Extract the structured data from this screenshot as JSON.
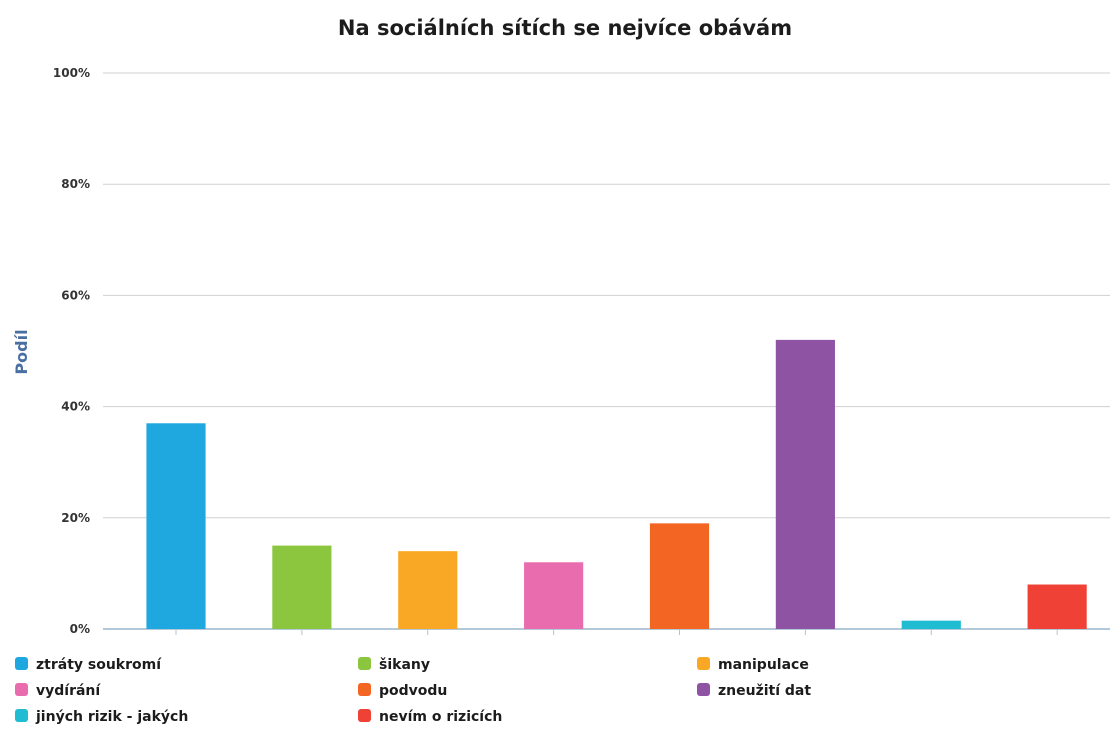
{
  "chart_data": {
    "type": "bar",
    "title": "Na sociálních sítích se nejvíce obávám",
    "xlabel": "",
    "ylabel": "Podíl",
    "ylim": [
      0,
      100
    ],
    "yticks": [
      "0%",
      "20%",
      "40%",
      "60%",
      "80%",
      "100%"
    ],
    "grid": true,
    "legend_position": "bottom",
    "categories": [
      "ztráty soukromí",
      "šikany",
      "manipulace",
      "vydírání",
      "podvodu",
      "zneužití dat",
      "jiných rizik - jakých",
      "nevím o rizicích"
    ],
    "values": [
      37,
      15,
      14,
      12,
      19,
      52,
      1.5,
      8
    ],
    "colors": [
      "#1fa8e0",
      "#8cc63f",
      "#f9a825",
      "#e86cae",
      "#f26522",
      "#8e54a3",
      "#1fbcd2",
      "#ef4136"
    ]
  }
}
